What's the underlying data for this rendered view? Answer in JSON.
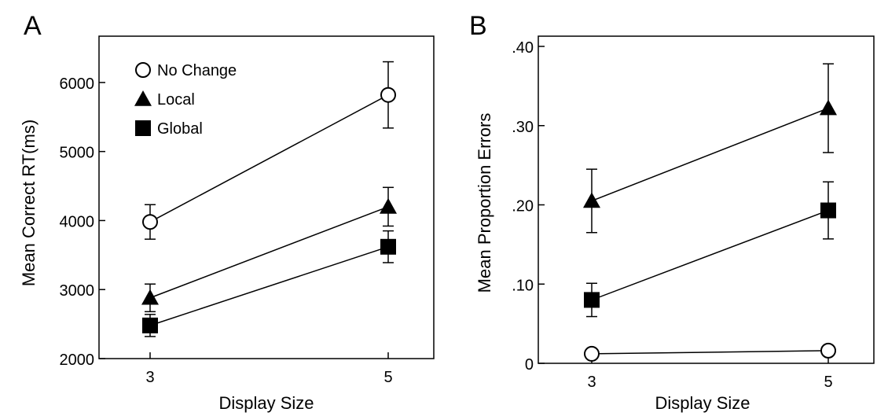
{
  "chart_data": [
    {
      "panel_label": "A",
      "type": "line",
      "x": [
        3,
        5
      ],
      "xticklabels": [
        "3",
        "5"
      ],
      "xlabel": "Display Size",
      "ylabel": "Mean Correct RT(ms)",
      "ylim": [
        2000,
        6500
      ],
      "yticks": [
        2000,
        3000,
        4000,
        5000,
        6000
      ],
      "yticklabels": [
        "2000",
        "3000",
        "4000",
        "5000",
        "6000"
      ],
      "legend_position": "top-left",
      "grid": false,
      "series": [
        {
          "name": "No Change",
          "marker": "open-circle",
          "values": [
            3980,
            5820
          ],
          "err": [
            250,
            480
          ]
        },
        {
          "name": "Local",
          "marker": "filled-triangle",
          "values": [
            2880,
            4200
          ],
          "err": [
            200,
            280
          ]
        },
        {
          "name": "Global",
          "marker": "filled-square",
          "values": [
            2480,
            3620
          ],
          "err": [
            160,
            230
          ]
        }
      ]
    },
    {
      "panel_label": "B",
      "type": "line",
      "x": [
        3,
        5
      ],
      "xticklabels": [
        "3",
        "5"
      ],
      "xlabel": "Display Size",
      "ylabel": "Mean Proportion Errors",
      "ylim": [
        0,
        0.4
      ],
      "yticks": [
        0,
        0.1,
        0.2,
        0.3,
        0.4
      ],
      "yticklabels": [
        "0",
        ".10",
        ".20",
        ".30",
        ".40"
      ],
      "grid": false,
      "series": [
        {
          "name": "No Change",
          "marker": "open-circle",
          "values": [
            0.012,
            0.016
          ],
          "err": [
            0,
            0
          ]
        },
        {
          "name": "Local",
          "marker": "filled-triangle",
          "values": [
            0.205,
            0.322
          ],
          "err": [
            0.04,
            0.056
          ]
        },
        {
          "name": "Global",
          "marker": "filled-square",
          "values": [
            0.08,
            0.193
          ],
          "err": [
            0.021,
            0.036
          ]
        }
      ]
    }
  ]
}
